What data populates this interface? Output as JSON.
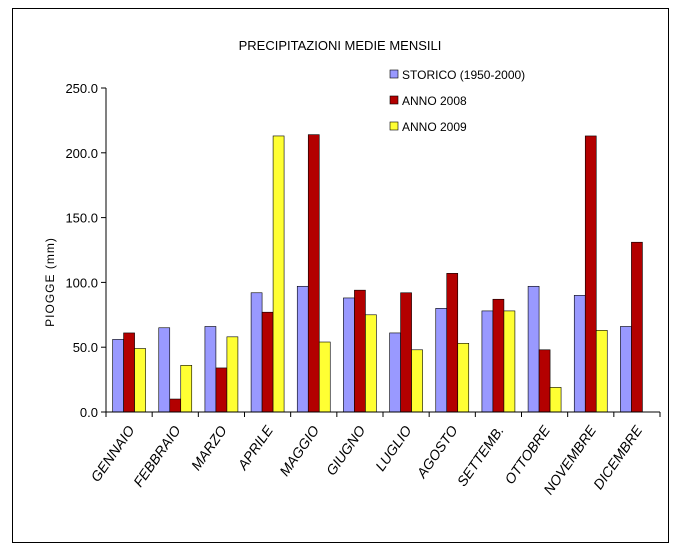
{
  "chart_data": {
    "type": "bar",
    "title": "PRECIPITAZIONI MEDIE MENSILI",
    "xlabel": "",
    "ylabel": "PIOGGE (mm)",
    "ylim": [
      0,
      250
    ],
    "ytick_labels": [
      "0.0",
      "50.0",
      "100.0",
      "150.0",
      "200.0",
      "250.0"
    ],
    "grid": false,
    "legend": "top-right",
    "categories": [
      "GENNAIO",
      "FEBBRAIO",
      "MARZO",
      "APRILE",
      "MAGGIO",
      "GIUGNO",
      "LUGLIO",
      "AGOSTO",
      "SETTEMB.",
      "OTTOBRE",
      "NOVEMBRE",
      "DICEMBRE"
    ],
    "series": [
      {
        "name": "STORICO (1950-2000)",
        "color": "#9999ff",
        "values": [
          56,
          65,
          66,
          92,
          97,
          88,
          61,
          80,
          78,
          97,
          90,
          66
        ]
      },
      {
        "name": "ANNO 2008",
        "color": "#b30000",
        "values": [
          61,
          10,
          34,
          77,
          214,
          94,
          92,
          107,
          87,
          48,
          213,
          131
        ]
      },
      {
        "name": "ANNO 2009",
        "color": "#ffff33",
        "values": [
          49,
          36,
          58,
          213,
          54,
          75,
          48,
          53,
          78,
          19,
          63,
          null
        ]
      }
    ]
  }
}
